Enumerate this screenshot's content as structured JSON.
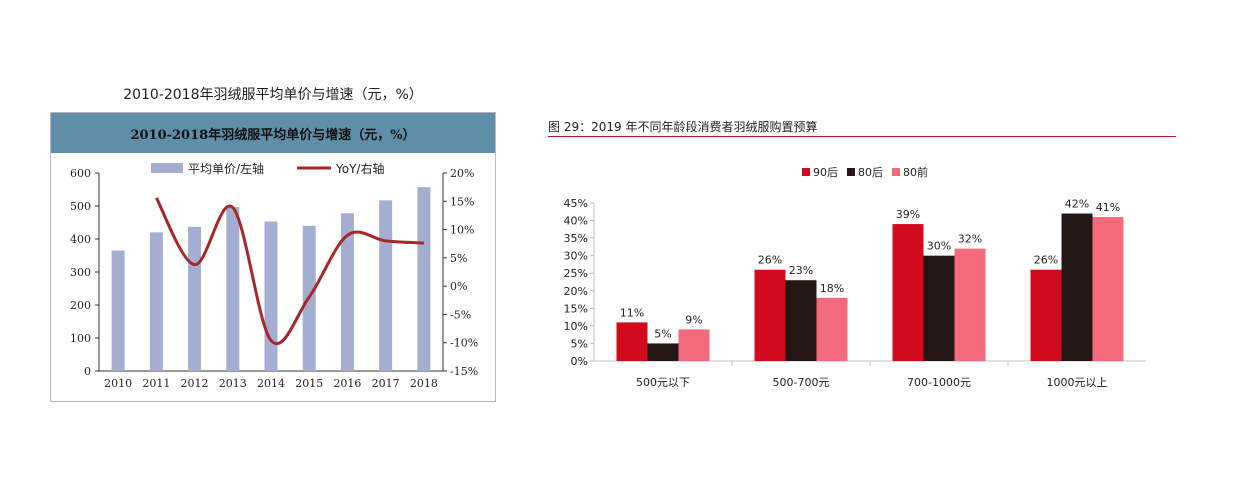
{
  "left_chart": {
    "title": "2010-2018年羽绒服平均单价与增速（元，%）",
    "inner_title": "2010-2018年羽绒服平均单价与增速（元，%）",
    "chart_data": {
      "type": "bar",
      "categories": [
        "2010",
        "2011",
        "2012",
        "2013",
        "2014",
        "2015",
        "2016",
        "2017",
        "2018"
      ],
      "series": [
        {
          "name": "平均单价/左轴",
          "type": "bar",
          "axis": "left",
          "color": "#a4aed0",
          "values": [
            365,
            420,
            437,
            497,
            453,
            440,
            478,
            517,
            557
          ]
        },
        {
          "name": "YoY/右轴",
          "type": "line",
          "axis": "right",
          "color": "#a72628",
          "values": [
            null,
            15.6,
            3.8,
            13.9,
            -9.6,
            -1.9,
            9.0,
            8.0,
            7.6
          ]
        }
      ],
      "y_left": {
        "min": 0,
        "max": 600,
        "ticks": [
          "0",
          "100",
          "200",
          "300",
          "400",
          "500",
          "600"
        ]
      },
      "y_right": {
        "min": -15,
        "max": 20,
        "ticks": [
          "-15%",
          "-10%",
          "-5%",
          "0%",
          "5%",
          "10%",
          "15%",
          "20%"
        ]
      },
      "grid": false,
      "legend_position": "top"
    }
  },
  "right_chart": {
    "title": "图 29：2019 年不同年龄段消费者羽绒服购置预算",
    "chart_data": {
      "type": "bar",
      "categories": [
        "500元以下",
        "500-700元",
        "700-1000元",
        "1000元以上"
      ],
      "series": [
        {
          "name": "90后",
          "color": "#d20a1e",
          "values": [
            11,
            26,
            39,
            26
          ],
          "labels": [
            "11%",
            "26%",
            "39%",
            "26%"
          ]
        },
        {
          "name": "80后",
          "color": "#231815",
          "values": [
            5,
            23,
            30,
            42
          ],
          "labels": [
            "5%",
            "23%",
            "30%",
            "42%"
          ]
        },
        {
          "name": "80前",
          "color": "#f36a7c",
          "values": [
            9,
            18,
            32,
            41
          ],
          "labels": [
            "9%",
            "18%",
            "32%",
            "41%"
          ]
        }
      ],
      "y": {
        "min": 0,
        "max": 45,
        "ticks": [
          "0%",
          "5%",
          "10%",
          "15%",
          "20%",
          "25%",
          "30%",
          "35%",
          "40%",
          "45%"
        ]
      },
      "grid": false,
      "legend_position": "top"
    }
  }
}
